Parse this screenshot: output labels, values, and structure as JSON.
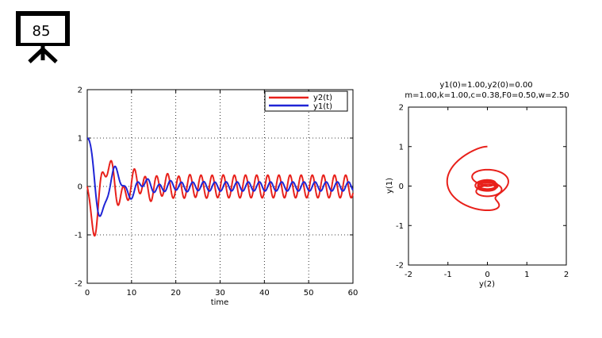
{
  "slide": {
    "number": "85"
  },
  "colors": {
    "red": "#e8201a",
    "blue": "#1f24d6"
  },
  "chart_data": [
    {
      "type": "line",
      "xlabel": "time",
      "ylabel": "",
      "xlim": [
        0,
        60
      ],
      "ylim": [
        -2,
        2
      ],
      "xticks": [
        0,
        10,
        20,
        30,
        40,
        50,
        60
      ],
      "yticks": [
        -2,
        -1,
        0,
        1,
        2
      ],
      "grid": true,
      "legend_position": "top-right",
      "series": [
        {
          "name": "y2(t)",
          "color": "#e8201a",
          "quantity": "y2",
          "x_range": [
            0,
            60
          ]
        },
        {
          "name": "y1(t)",
          "color": "#1f24d6",
          "quantity": "y1",
          "x_range": [
            0,
            60
          ]
        }
      ],
      "model": {
        "m": 1.0,
        "k": 1.0,
        "c": 0.38,
        "F0": 0.5,
        "w": 2.5,
        "y1_0": 1.0,
        "y2_0": 0.0
      }
    },
    {
      "type": "line",
      "title_line1": "y1(0)=1.00,y2(0)=0.00",
      "title_line2": "m=1.00,k=1.00,c=0.38,F0=0.50,w=2.50",
      "xlabel": "y(2)",
      "ylabel": "y(1)",
      "xlim": [
        -2,
        2
      ],
      "ylim": [
        -2,
        2
      ],
      "xticks": [
        -2,
        -1,
        0,
        1,
        2
      ],
      "yticks": [
        -2,
        -1,
        0,
        1,
        2
      ],
      "grid": false,
      "series": [
        {
          "color": "#e8201a",
          "x_quantity": "y2",
          "y_quantity": "y1",
          "t_range": [
            0,
            60
          ]
        }
      ]
    }
  ]
}
